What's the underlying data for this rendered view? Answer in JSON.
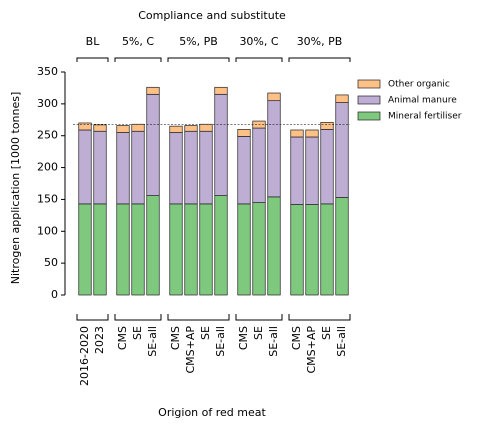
{
  "chart_data": {
    "type": "bar",
    "stacked": true,
    "title": "Compliance and substitute",
    "ylabel": "Nitrogen application [1000 tonnes]",
    "xlabel": "Origion of red meat",
    "groups": [
      {
        "label": "BL",
        "categories": [
          "2016-2020",
          "2023"
        ]
      },
      {
        "label": "5%, C",
        "categories": [
          "CMS",
          "SE",
          "SE-all"
        ]
      },
      {
        "label": "5%, PB",
        "categories": [
          "CMS",
          "CMS+AP",
          "SE",
          "SE-all"
        ]
      },
      {
        "label": "30%, C",
        "categories": [
          "CMS",
          "SE",
          "SE-all"
        ]
      },
      {
        "label": "30%, PB",
        "categories": [
          "CMS",
          "CMS+AP",
          "SE",
          "SE-all"
        ]
      }
    ],
    "series": [
      {
        "name": "Mineral fertiliser",
        "color": "#7fc97f",
        "values": [
          143,
          143,
          143,
          143,
          156,
          143,
          143,
          143,
          156,
          143,
          145,
          154,
          142,
          142,
          143,
          153
        ]
      },
      {
        "name": "Animal manure",
        "color": "#beaed4",
        "values": [
          116,
          114,
          112,
          114,
          159,
          112,
          114,
          114,
          159,
          106,
          117,
          151,
          106,
          106,
          117,
          149
        ]
      },
      {
        "name": "Other organic",
        "color": "#fdc086",
        "values": [
          11,
          10,
          11,
          11,
          11,
          10,
          9,
          11,
          11,
          11,
          11,
          12,
          11,
          11,
          11,
          12
        ]
      }
    ],
    "reference_line": 268,
    "ylim": [
      0,
      350
    ],
    "yticks": [
      0,
      50,
      100,
      150,
      200,
      250,
      300,
      350
    ],
    "legend": "upper right outside"
  }
}
